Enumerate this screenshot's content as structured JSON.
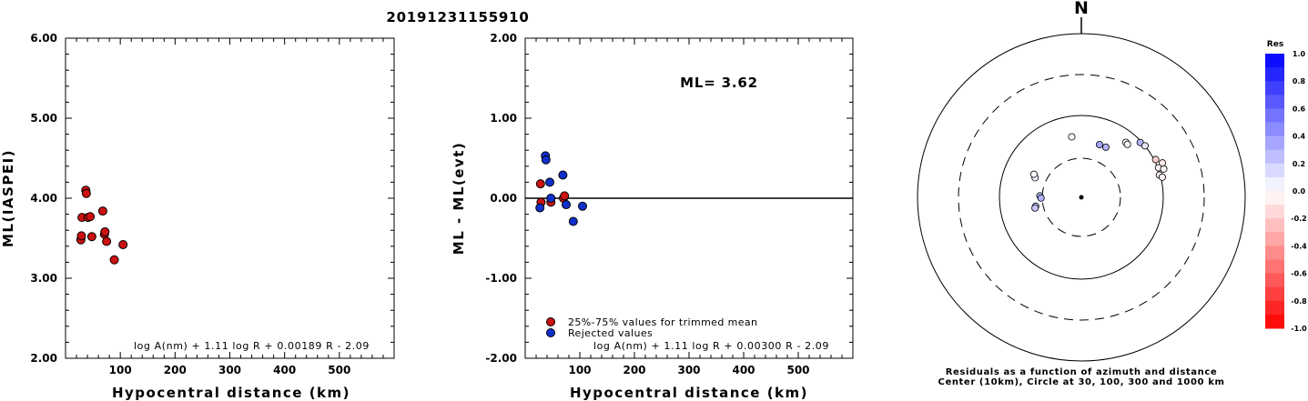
{
  "title": "20191231155910",
  "chart_data": [
    {
      "type": "scatter",
      "ylabel": "ML(IASPEI)",
      "xlabel": "Hypocentral distance (km)",
      "xlim": [
        0,
        600
      ],
      "ylim": [
        2.0,
        6.0
      ],
      "xticks": [
        "100",
        "200",
        "300",
        "400",
        "500"
      ],
      "yticks": [
        "2.00",
        "3.00",
        "4.00",
        "5.00",
        "6.00"
      ],
      "formula": "log A(nm) + 1.11 log R + 0.00189 R - 2.09",
      "series": [
        {
          "color": "#cc1111",
          "points": [
            [
              28,
              3.48
            ],
            [
              29,
              3.53
            ],
            [
              30,
              3.76
            ],
            [
              37,
              4.1
            ],
            [
              38,
              4.06
            ],
            [
              41,
              3.76
            ],
            [
              45,
              3.77
            ],
            [
              48,
              3.52
            ],
            [
              68,
              3.84
            ],
            [
              71,
              3.55
            ],
            [
              72,
              3.58
            ],
            [
              75,
              3.46
            ],
            [
              89,
              3.23
            ],
            [
              105,
              3.42
            ]
          ]
        }
      ]
    },
    {
      "type": "scatter",
      "ylabel": "ML - ML(evt)",
      "xlabel": "Hypocentral distance (km)",
      "xlim": [
        0,
        600
      ],
      "ylim": [
        -2.0,
        2.0
      ],
      "xticks": [
        "100",
        "200",
        "300",
        "400",
        "500"
      ],
      "yticks": [
        "-2.00",
        "-1.00",
        "0.00",
        "1.00",
        "2.00"
      ],
      "annotation": "ML= 3.62",
      "formula": "log A(nm) + 1.11 log R + 0.00300 R - 2.09",
      "legend": [
        "25%-75% values for trimmed mean",
        "Rejected values"
      ],
      "series": [
        {
          "name": "25%-75% values for trimmed mean",
          "color": "#cc1111",
          "points": [
            [
              28,
              0.18
            ],
            [
              29,
              -0.05
            ],
            [
              47,
              -0.05
            ],
            [
              70,
              0.0
            ],
            [
              72,
              0.03
            ]
          ]
        },
        {
          "name": "Rejected values",
          "color": "#1030cc",
          "points": [
            [
              27,
              -0.12
            ],
            [
              37,
              0.53
            ],
            [
              38,
              0.48
            ],
            [
              45,
              0.2
            ],
            [
              47,
              0.0
            ],
            [
              69,
              0.29
            ],
            [
              75,
              -0.08
            ],
            [
              88,
              -0.29
            ],
            [
              105,
              -0.1
            ]
          ]
        }
      ]
    },
    {
      "type": "scatter",
      "subtype": "polar-residuals",
      "north_label": "N",
      "colorbar_title": "Res",
      "colorbar_ticks": [
        "1.0",
        "0.8",
        "0.6",
        "0.4",
        "0.2",
        "0.0",
        "-0.2",
        "-0.4",
        "-0.6",
        "-0.8",
        "-1.0"
      ],
      "circles_km": [
        10,
        30,
        100,
        300,
        1000
      ],
      "caption": [
        "Residuals as a function of azimuth and distance",
        "Center (10km), Circle at 30, 100, 300 and 1000 km"
      ],
      "stations": [
        {
          "az": 293,
          "dist": 41,
          "res": 0.05
        },
        {
          "az": 296,
          "dist": 44,
          "res": 0.03
        },
        {
          "az": 272,
          "dist": 32,
          "res": 0.25
        },
        {
          "az": 269,
          "dist": 31,
          "res": 0.3
        },
        {
          "az": 259,
          "dist": 37,
          "res": 0.2
        },
        {
          "az": 257,
          "dist": 38,
          "res": 0.22
        },
        {
          "az": 351,
          "dist": 56,
          "res": 0.0
        },
        {
          "az": 19,
          "dist": 48,
          "res": 0.35
        },
        {
          "az": 26,
          "dist": 48,
          "res": 0.3
        },
        {
          "az": 39,
          "dist": 73,
          "res": 0.0
        },
        {
          "az": 41,
          "dist": 72,
          "res": 0.05
        },
        {
          "az": 47,
          "dist": 96,
          "res": 0.29
        },
        {
          "az": 51,
          "dist": 100,
          "res": 0.1
        },
        {
          "az": 63,
          "dist": 104,
          "res": -0.18
        },
        {
          "az": 69,
          "dist": 102,
          "res": -0.05
        },
        {
          "az": 74,
          "dist": 98,
          "res": -0.03
        },
        {
          "az": 76,
          "dist": 104,
          "res": -0.05
        },
        {
          "az": 67,
          "dist": 118,
          "res": -0.1
        },
        {
          "az": 71,
          "dist": 115,
          "res": -0.05
        }
      ]
    }
  ]
}
